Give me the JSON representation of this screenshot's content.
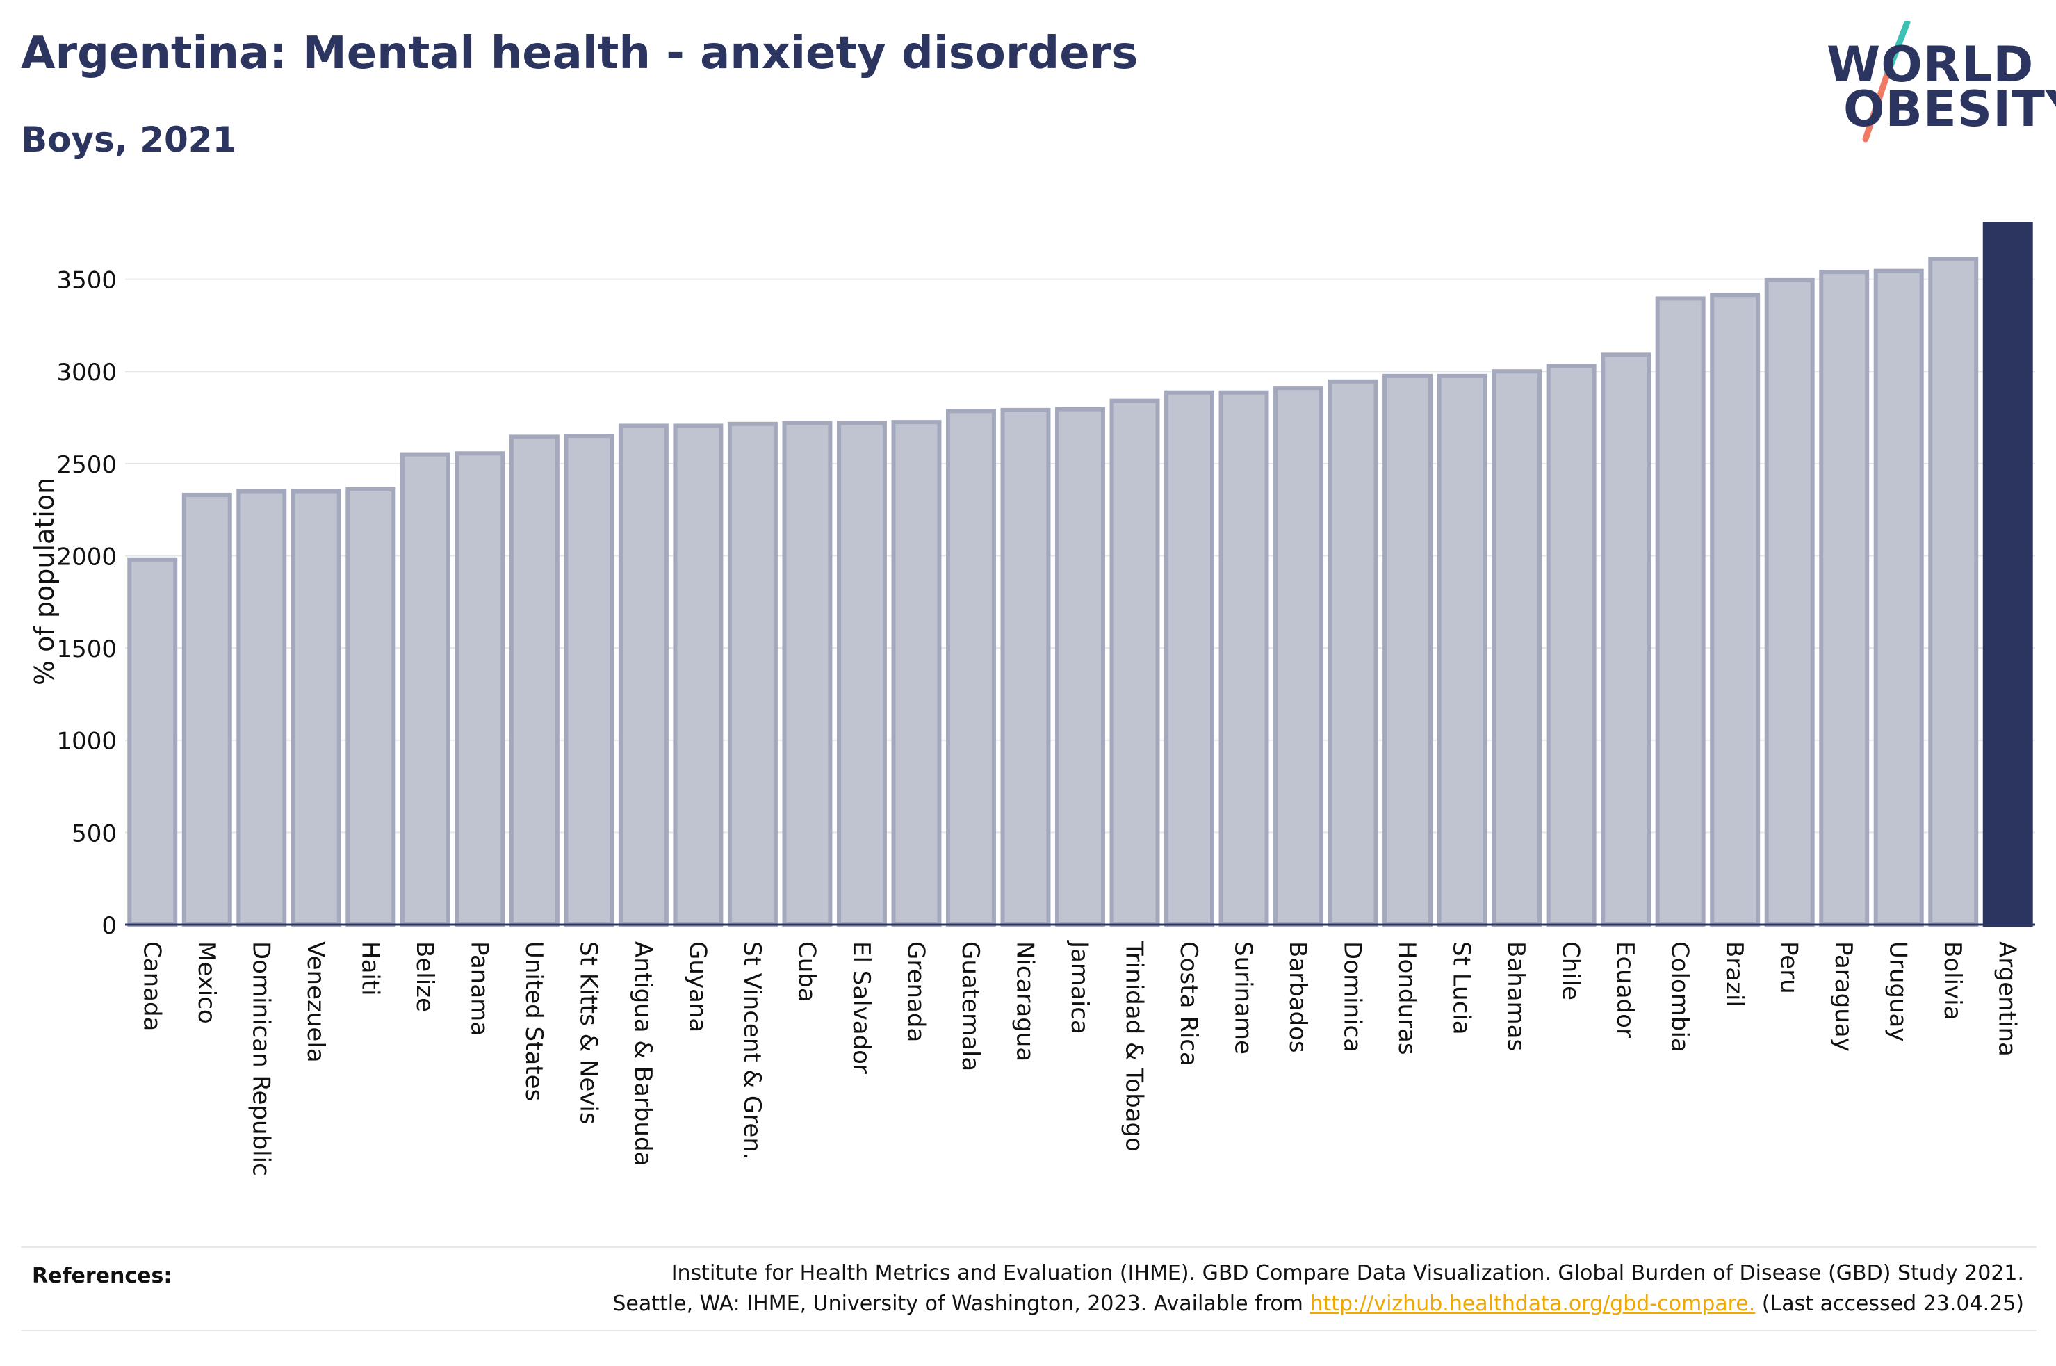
{
  "header": {
    "title": "Argentina: Mental health - anxiety disorders",
    "subtitle": "Boys, 2021"
  },
  "logo": {
    "line1": "WORLD",
    "line2": "OBESITY",
    "slash_colors": [
      "#3ec1b5",
      "#f07a64"
    ]
  },
  "chart_data": {
    "type": "bar",
    "ylabel": "% of population",
    "ylim": [
      0,
      3800
    ],
    "yticks": [
      0,
      500,
      1000,
      1500,
      2000,
      2500,
      3000,
      3500
    ],
    "grid": true,
    "highlight": "Argentina",
    "colors": {
      "bar": "#c0c3d0",
      "bar_edge": "#a3a8bc",
      "highlight": "#2b3560",
      "grid": "#e6e6ea"
    },
    "categories": [
      "Canada",
      "Mexico",
      "Dominican Republic",
      "Venezuela",
      "Haiti",
      "Belize",
      "Panama",
      "United States",
      "St Kitts & Nevis",
      "Antigua & Barbuda",
      "Guyana",
      "St Vincent & Gren.",
      "Cuba",
      "El Salvador",
      "Grenada",
      "Guatemala",
      "Nicaragua",
      "Jamaica",
      "Trinidad & Tobago",
      "Costa Rica",
      "Suriname",
      "Barbados",
      "Dominica",
      "Honduras",
      "St Lucia",
      "Bahamas",
      "Chile",
      "Ecuador",
      "Colombia",
      "Brazil",
      "Peru",
      "Paraguay",
      "Uruguay",
      "Bolivia",
      "Argentina"
    ],
    "values": [
      1980,
      2330,
      2350,
      2350,
      2360,
      2550,
      2555,
      2645,
      2650,
      2705,
      2705,
      2715,
      2720,
      2720,
      2725,
      2785,
      2790,
      2795,
      2840,
      2885,
      2885,
      2910,
      2945,
      2975,
      2975,
      3000,
      3030,
      3090,
      3395,
      3415,
      3495,
      3540,
      3545,
      3610,
      3800
    ]
  },
  "footer": {
    "references_label": "References:",
    "ref_line1": "Institute for Health Metrics and Evaluation (IHME). GBD Compare Data Visualization. Global Burden of Disease (GBD) Study 2021.",
    "ref_line2_pre": "Seattle, WA: IHME, University of Washington, 2023. Available from ",
    "ref_link": "http://vizhub.healthdata.org/gbd-compare.",
    "ref_line2_post": " (Last accessed 23.04.25)"
  }
}
